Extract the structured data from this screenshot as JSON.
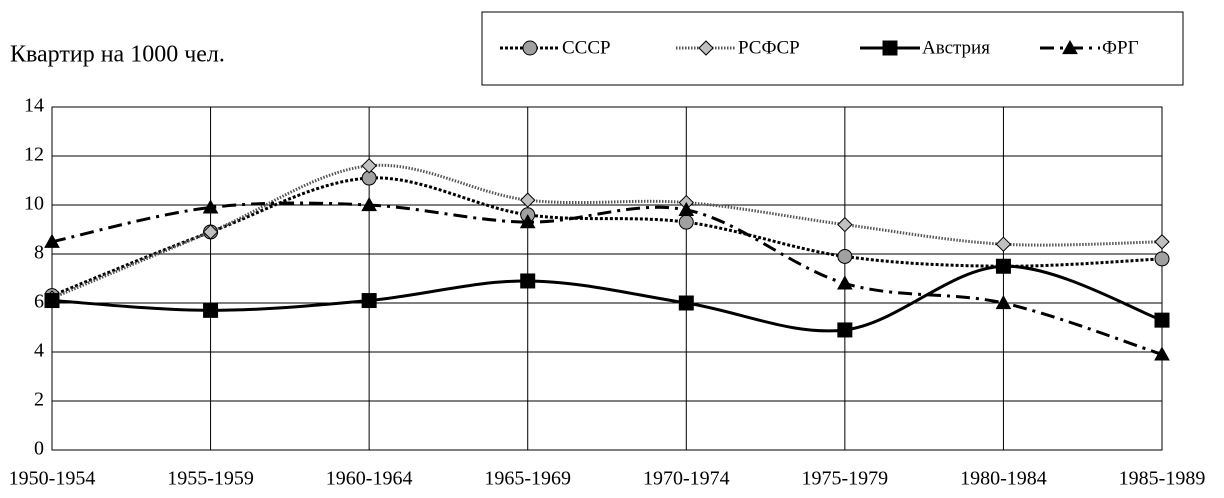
{
  "chart_data": {
    "type": "line",
    "title": "Квартир на 1000 чел.",
    "categories": [
      "1950-1954",
      "1955-1959",
      "1960-1964",
      "1965-1969",
      "1970-1974",
      "1975-1979",
      "1980-1984",
      "1985-1989"
    ],
    "series": [
      {
        "name": "СССР",
        "color": "#000000",
        "marker": "circle",
        "marker_color": "#a0a0a0",
        "dash": "3 2",
        "values": [
          6.3,
          8.9,
          11.1,
          9.6,
          9.3,
          7.9,
          7.5,
          7.8
        ]
      },
      {
        "name": "РСФСР",
        "color": "#555555",
        "marker": "diamond",
        "marker_color": "#c0c0c0",
        "dash": "1.5 1.5",
        "values": [
          6.2,
          8.9,
          11.6,
          10.2,
          10.1,
          9.2,
          8.4,
          8.5
        ]
      },
      {
        "name": "Австрия",
        "color": "#000000",
        "marker": "square",
        "marker_color": "#000000",
        "dash": "none",
        "values": [
          6.1,
          5.7,
          6.1,
          6.9,
          6.0,
          4.9,
          7.5,
          5.3
        ]
      },
      {
        "name": "ФРГ",
        "color": "#000000",
        "marker": "triangle",
        "marker_color": "#000000",
        "dash": "14 6 3 6",
        "values": [
          8.5,
          9.9,
          10.0,
          9.3,
          9.8,
          6.8,
          6.0,
          3.9
        ]
      }
    ],
    "ylim": [
      0,
      14
    ],
    "yticks": [
      0,
      2,
      4,
      6,
      8,
      10,
      12,
      14
    ],
    "grid": true,
    "smooth": true
  }
}
